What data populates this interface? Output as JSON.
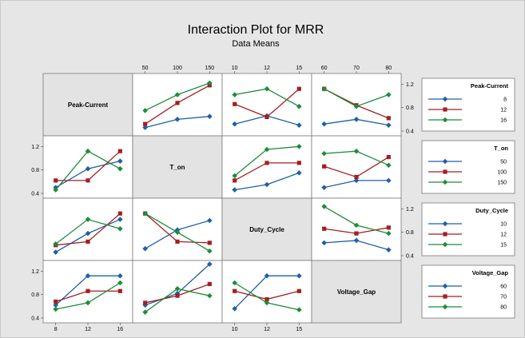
{
  "chart_data": {
    "type": "line",
    "title": "Interaction Plot for MRR",
    "subtitle": "Data Means",
    "factors": [
      {
        "name": "Peak-Current",
        "levels": [
          "8",
          "12",
          "16"
        ]
      },
      {
        "name": "T_on",
        "levels": [
          "50",
          "100",
          "150"
        ]
      },
      {
        "name": "Duty_Cycle",
        "levels": [
          "10",
          "12",
          "15"
        ]
      },
      {
        "name": "Voltage_Gap",
        "levels": [
          "60",
          "70",
          "80"
        ]
      }
    ],
    "series_colors": [
      "#1f5fa8",
      "#a31f22",
      "#1e8c3a"
    ],
    "marker_shapes": [
      "diamond",
      "square",
      "diamond"
    ],
    "ylim": [
      0.4,
      1.3
    ],
    "yticks": [
      "0.4",
      "0.8",
      "1.2"
    ],
    "panels": [
      {
        "x_factor": "T_on",
        "trace_factor": "Peak-Current",
        "series": [
          {
            "level": "8",
            "values": [
              0.46,
              0.6,
              0.65
            ]
          },
          {
            "level": "12",
            "values": [
              0.52,
              0.88,
              1.18
            ]
          },
          {
            "level": "16",
            "values": [
              0.75,
              1.02,
              1.22
            ]
          }
        ]
      },
      {
        "x_factor": "Duty_Cycle",
        "trace_factor": "Peak-Current",
        "series": [
          {
            "level": "8",
            "values": [
              0.52,
              0.66,
              0.5
            ]
          },
          {
            "level": "12",
            "values": [
              0.86,
              0.64,
              1.12
            ]
          },
          {
            "level": "16",
            "values": [
              1.02,
              1.12,
              0.82
            ]
          }
        ]
      },
      {
        "x_factor": "Voltage_Gap",
        "trace_factor": "Peak-Current",
        "series": [
          {
            "level": "8",
            "values": [
              0.52,
              0.6,
              0.5
            ]
          },
          {
            "level": "12",
            "values": [
              1.12,
              0.84,
              0.62
            ]
          },
          {
            "level": "16",
            "values": [
              1.12,
              0.82,
              1.02
            ]
          }
        ]
      },
      {
        "x_factor": "Peak-Current",
        "trace_factor": "T_on",
        "series": [
          {
            "level": "50",
            "values": [
              0.46,
              0.55,
              0.75
            ]
          },
          {
            "level": "100",
            "values": [
              0.62,
              0.92,
              0.92
            ]
          },
          {
            "level": "150",
            "values": [
              0.7,
              1.15,
              1.2
            ]
          }
        ]
      },
      {
        "x_factor": "Duty_Cycle",
        "trace_factor": "T_on",
        "series": [
          {
            "level": "50",
            "values": [
              0.5,
              0.62,
              0.62
            ]
          },
          {
            "level": "100",
            "values": [
              0.86,
              0.68,
              1.02
            ]
          },
          {
            "level": "150",
            "values": [
              1.08,
              1.12,
              0.88
            ]
          }
        ]
      },
      {
        "x_factor": "Voltage_Gap",
        "trace_factor": "T_on",
        "series": [
          {
            "level": "50",
            "values": [
              0.62,
              0.66,
              0.5
            ]
          },
          {
            "level": "100",
            "values": [
              0.86,
              0.78,
              0.88
            ]
          },
          {
            "level": "150",
            "values": [
              1.24,
              0.92,
              0.78
            ]
          }
        ]
      },
      {
        "x_factor": "Peak-Current",
        "trace_factor": "Duty_Cycle",
        "series": [
          {
            "level": "10",
            "values": [
              0.5,
              0.82,
              0.95
            ]
          },
          {
            "level": "12",
            "values": [
              0.62,
              0.62,
              1.12
            ]
          },
          {
            "level": "15",
            "values": [
              0.46,
              1.12,
              0.82
            ]
          }
        ]
      },
      {
        "x_factor": "T_on",
        "trace_factor": "Duty_Cycle",
        "series": [
          {
            "level": "10",
            "values": [
              0.46,
              0.78,
              1.02
            ]
          },
          {
            "level": "12",
            "values": [
              0.58,
              0.64,
              1.12
            ]
          },
          {
            "level": "15",
            "values": [
              0.6,
              1.02,
              0.86
            ]
          }
        ]
      },
      {
        "x_factor": "Voltage_Gap",
        "trace_factor": "Duty_Cycle",
        "series": [
          {
            "level": "10",
            "values": [
              0.52,
              0.84,
              1.0
            ]
          },
          {
            "level": "12",
            "values": [
              1.12,
              0.64,
              0.62
            ]
          },
          {
            "level": "15",
            "values": [
              1.12,
              0.8,
              0.48
            ]
          }
        ]
      },
      {
        "x_factor": "Peak-Current",
        "trace_factor": "Voltage_Gap",
        "series": [
          {
            "level": "60",
            "values": [
              0.62,
              1.12,
              1.12
            ]
          },
          {
            "level": "70",
            "values": [
              0.68,
              0.86,
              0.86
            ]
          },
          {
            "level": "80",
            "values": [
              0.55,
              0.66,
              1.0
            ]
          }
        ]
      },
      {
        "x_factor": "T_on",
        "trace_factor": "Voltage_Gap",
        "series": [
          {
            "level": "60",
            "values": [
              0.62,
              0.82,
              1.32
            ]
          },
          {
            "level": "70",
            "values": [
              0.66,
              0.78,
              0.98
            ]
          },
          {
            "level": "80",
            "values": [
              0.5,
              0.9,
              0.78
            ]
          }
        ]
      },
      {
        "x_factor": "Duty_Cycle",
        "trace_factor": "Voltage_Gap",
        "series": [
          {
            "level": "60",
            "values": [
              0.56,
              1.12,
              1.12
            ]
          },
          {
            "level": "70",
            "values": [
              0.86,
              0.72,
              0.86
            ]
          },
          {
            "level": "80",
            "values": [
              1.0,
              0.66,
              0.54
            ]
          }
        ]
      }
    ]
  }
}
